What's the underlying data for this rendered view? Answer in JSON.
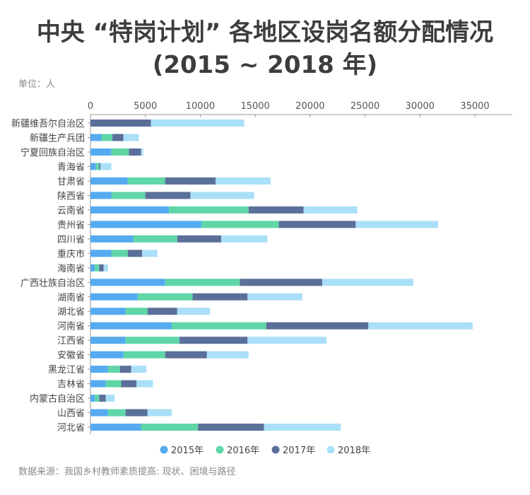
{
  "title_line1": "中央 “特岗计划” 各地区设岗名额分配情况",
  "title_line2": "(2015 ~ 2018 年)",
  "unit": "单位：人",
  "source": "数据来源：我国乡村教师素质提高: 现状、困境与路径",
  "chart_data": {
    "type": "bar",
    "orientation": "horizontal",
    "stacked": true,
    "xlim": [
      0,
      38000
    ],
    "xticks": [
      "0",
      "5000",
      "10000",
      "15000",
      "20000",
      "25000",
      "30000",
      "35000"
    ],
    "xtick_values": [
      0,
      5000,
      10000,
      15000,
      20000,
      25000,
      30000,
      35000
    ],
    "axis_position": "top",
    "grid": false,
    "legend_position": "bottom",
    "categories": [
      "新疆维吾尔自治区",
      "新疆生产兵团",
      "宁夏回族自治区",
      "青海省",
      "甘肃省",
      "陕西省",
      "云南省",
      "贵州省",
      "四川省",
      "重庆市",
      "海南省",
      "广西壮族自治区",
      "湖南省",
      "湖北省",
      "河南省",
      "江西省",
      "安徽省",
      "黑龙江省",
      "吉林省",
      "内蒙古自治区",
      "山西省",
      "河北省"
    ],
    "series": [
      {
        "name": "2015年",
        "color": "#55aaf0",
        "values": [
          0,
          1000,
          1900,
          500,
          3400,
          1900,
          7150,
          10100,
          3900,
          1900,
          400,
          6800,
          4300,
          3200,
          7400,
          3200,
          3000,
          1600,
          1400,
          400,
          1600,
          4600
        ]
      },
      {
        "name": "2016年",
        "color": "#5fd6a8",
        "values": [
          0,
          1000,
          1600,
          300,
          3400,
          3100,
          7250,
          7050,
          4000,
          1500,
          400,
          6800,
          5000,
          2000,
          8600,
          4900,
          3800,
          1100,
          1400,
          400,
          1600,
          5200
        ]
      },
      {
        "name": "2017年",
        "color": "#5a6f99",
        "values": [
          5500,
          1000,
          1100,
          100,
          4600,
          4100,
          5000,
          7000,
          4000,
          1300,
          400,
          7500,
          5000,
          2700,
          9300,
          6200,
          3800,
          1000,
          1400,
          600,
          2000,
          6000
        ]
      },
      {
        "name": "2018年",
        "color": "#aadff8",
        "values": [
          8500,
          1400,
          200,
          1000,
          5000,
          5800,
          4900,
          7500,
          4200,
          1400,
          400,
          8300,
          5000,
          3000,
          9500,
          7200,
          3800,
          1400,
          1500,
          800,
          2200,
          7000
        ]
      }
    ]
  }
}
